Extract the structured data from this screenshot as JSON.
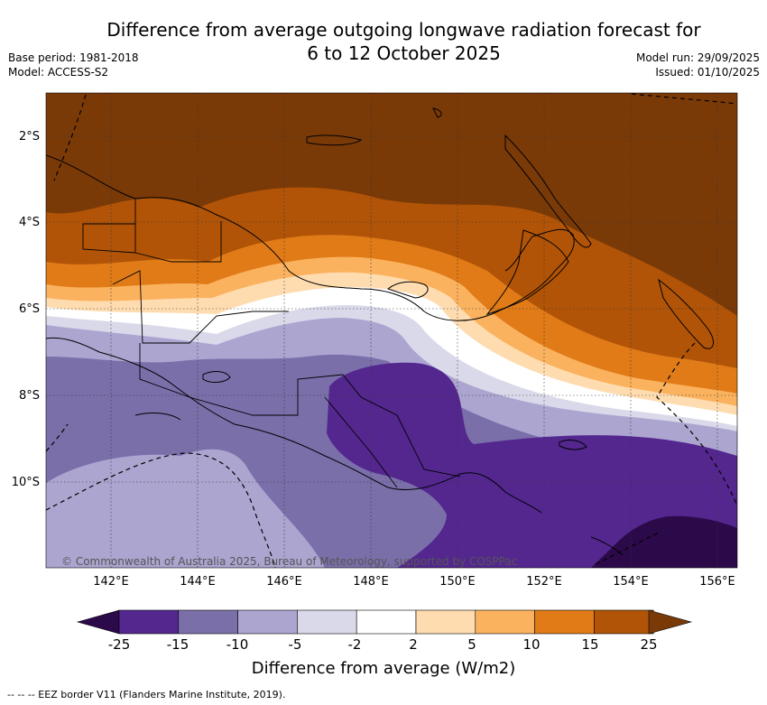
{
  "header": {
    "title_line1": "Difference from average outgoing longwave radiation forecast for",
    "title_line2": "6 to 12 October 2025",
    "base_period": "Base period: 1981-2018",
    "model": "Model: ACCESS-S2",
    "model_run": "Model run: 29/09/2025",
    "issued": "Issued: 01/10/2025"
  },
  "map": {
    "lat_labels": [
      "2°S",
      "4°S",
      "6°S",
      "8°S",
      "10°S"
    ],
    "lon_labels": [
      "142°E",
      "144°E",
      "146°E",
      "148°E",
      "150°E",
      "152°E",
      "154°E",
      "156°E"
    ],
    "copyright": "© Commonwealth of Australia 2025, Bureau of Meteorology, supported by COSPPac"
  },
  "colorbar": {
    "ticks": [
      "-25",
      "-15",
      "-10",
      "-5",
      "-2",
      "2",
      "5",
      "10",
      "15",
      "25"
    ],
    "colors": [
      "#2c0a4a",
      "#54278f",
      "#7b6faa",
      "#aba5d0",
      "#d9d9ea",
      "#ffffff",
      "#fedcb0",
      "#fbb25e",
      "#e07b18",
      "#b15407",
      "#7a3a08"
    ],
    "title": "Difference from average (W/m2)"
  },
  "footer": {
    "legend_text": "--  --  -- EEZ border V11 (Flanders Marine Institute, 2019)."
  }
}
